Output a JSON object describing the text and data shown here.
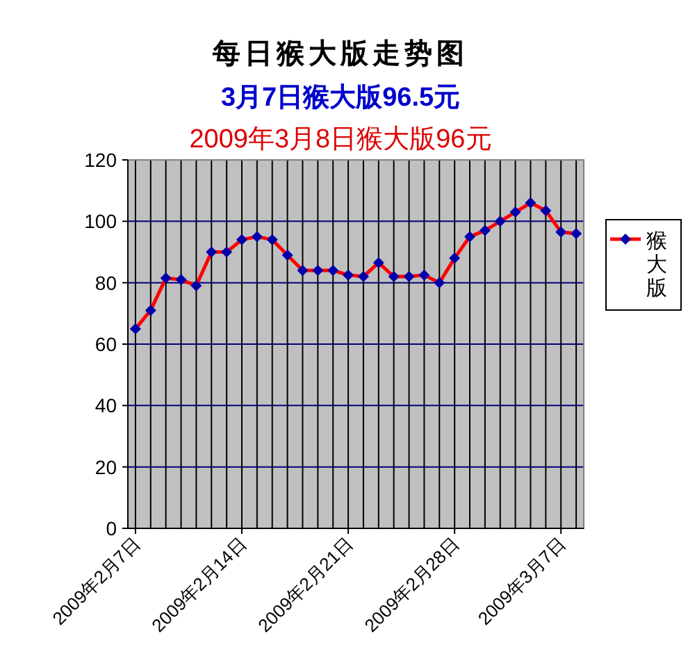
{
  "chart_data": {
    "type": "line",
    "title": "每日猴大版走势图",
    "subtitle": "3月7日猴大版96.5元",
    "annotations": [
      "2009年3月8日猴大版96元"
    ],
    "categories": [
      "2009年2月7日",
      null,
      null,
      null,
      null,
      null,
      null,
      "2009年2月14日",
      null,
      null,
      null,
      null,
      null,
      null,
      "2009年2月21日",
      null,
      null,
      null,
      null,
      null,
      null,
      "2009年2月28日",
      null,
      null,
      null,
      null,
      null,
      null,
      "2009年3月7日",
      null
    ],
    "series": [
      {
        "name": "猴大版",
        "color": "#ff0000",
        "values": [
          65,
          71,
          81.5,
          81,
          79,
          90,
          90,
          94,
          95,
          94,
          89,
          84,
          84,
          84,
          82.5,
          82,
          86.5,
          82,
          82,
          82.5,
          80,
          88,
          95,
          97,
          100,
          103,
          106,
          103.5,
          96.5,
          96
        ]
      }
    ],
    "ylim": [
      0,
      120
    ],
    "yticks": [
      0,
      20,
      40,
      60,
      80,
      100,
      120
    ],
    "grid": true,
    "legend": "right",
    "marker": "diamond",
    "line_style": "solid"
  }
}
